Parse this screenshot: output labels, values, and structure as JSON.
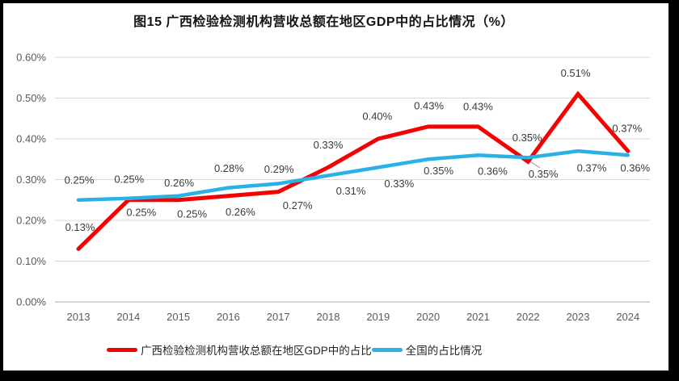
{
  "chart_data": {
    "type": "line",
    "title": "图15 广西检验检测机构营收总额在地区GDP中的占比情况（%）",
    "categories": [
      "2013",
      "2014",
      "2015",
      "2016",
      "2017",
      "2018",
      "2019",
      "2020",
      "2021",
      "2022",
      "2023",
      "2024"
    ],
    "series": [
      {
        "name": "广西检验检测机构营收总额在地区GDP中的占比",
        "color": "#f20202",
        "values": [
          0.13,
          0.25,
          0.25,
          0.26,
          0.27,
          0.33,
          0.4,
          0.43,
          0.43,
          0.35,
          0.51,
          0.37
        ],
        "labels": [
          "0.13%",
          "0.25%",
          "0.25%",
          "0.26%",
          "0.27%",
          "0.33%",
          "0.40%",
          "0.43%",
          "0.43%",
          "0.35%",
          "0.51%",
          "0.37%"
        ]
      },
      {
        "name": "全国的占比情况",
        "color": "#2ab2e7",
        "values": [
          0.25,
          0.25,
          0.26,
          0.28,
          0.29,
          0.31,
          0.33,
          0.35,
          0.36,
          0.35,
          0.37,
          0.36
        ],
        "labels": [
          "0.25%",
          "0.25%",
          "0.26%",
          "0.28%",
          "0.29%",
          "0.31%",
          "0.33%",
          "0.35%",
          "0.36%",
          "0.35%",
          "0.37%",
          "0.36%"
        ]
      }
    ],
    "xlabel": "",
    "ylabel": "",
    "y_ticks": [
      "0.00%",
      "0.10%",
      "0.20%",
      "0.30%",
      "0.40%",
      "0.50%",
      "0.60%"
    ],
    "ylim": [
      0,
      0.6
    ],
    "grid": true,
    "legend_position": "bottom"
  },
  "colors": {
    "grid": "#d9d9d9",
    "baseline": "#c9c9c9",
    "axis_text": "#595959",
    "data_label": "#3a3a3a",
    "leader_line": "#a6a6a6",
    "frame": "#000000",
    "background": "#ffffff"
  }
}
